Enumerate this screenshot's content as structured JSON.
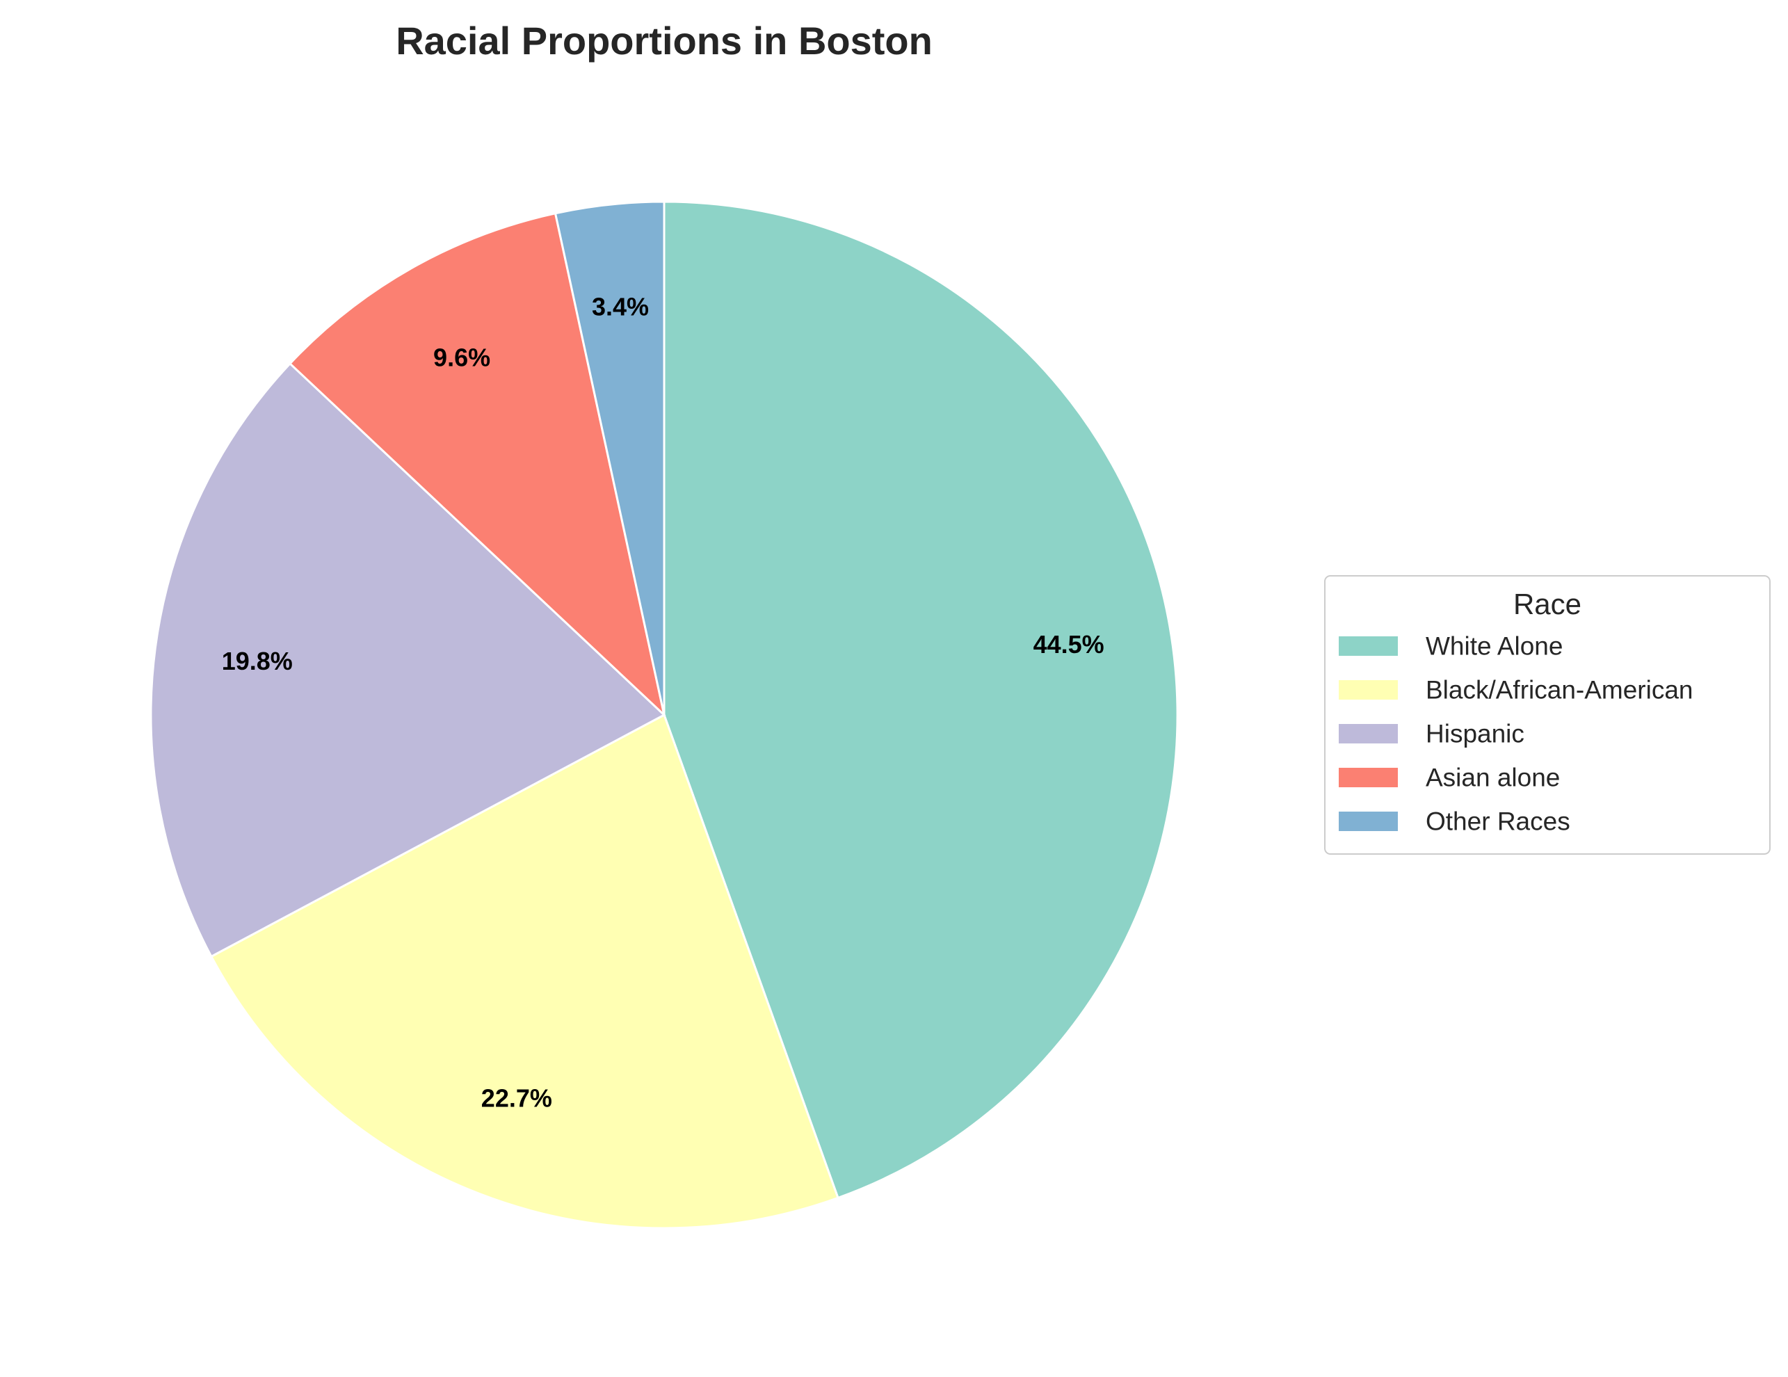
{
  "chart_data": {
    "type": "pie",
    "title": "Racial Proportions in Boston",
    "start_angle_deg": 90,
    "direction": "clockwise",
    "legend": {
      "title": "Race",
      "placement": "center-right"
    },
    "slices": [
      {
        "label": "White Alone",
        "value": 44.5,
        "display": "44.5%",
        "color": "#8dd3c7"
      },
      {
        "label": "Black/African-American",
        "value": 22.7,
        "display": "22.7%",
        "color": "#ffffb3"
      },
      {
        "label": "Hispanic",
        "value": 19.8,
        "display": "19.8%",
        "color": "#bebada"
      },
      {
        "label": "Asian alone",
        "value": 9.6,
        "display": "9.6%",
        "color": "#fb8072"
      },
      {
        "label": "Other Races",
        "value": 3.4,
        "display": "3.4%",
        "color": "#80b1d3"
      }
    ]
  }
}
